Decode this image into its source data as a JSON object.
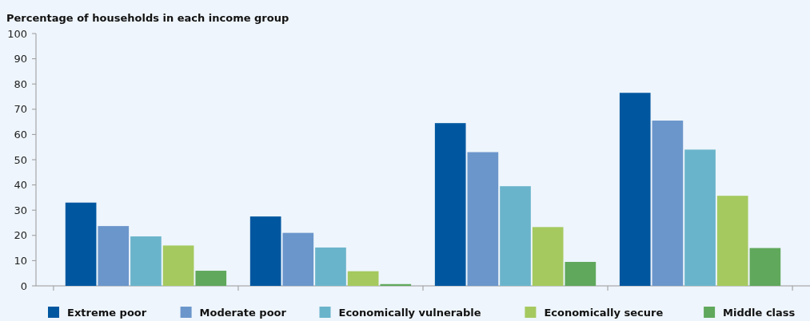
{
  "chart_data": {
    "type": "bar",
    "ylabel": "Percentage of households in each income group",
    "categories": [
      null,
      null,
      null,
      null
    ],
    "series": [
      {
        "name": "Extreme poor",
        "color": "#0057a0",
        "values": [
          33,
          27.5,
          64.5,
          76.5
        ]
      },
      {
        "name": "Moderate poor",
        "color": "#6b96cb",
        "values": [
          23.7,
          21,
          53,
          65.5
        ]
      },
      {
        "name": "Economically vulnerable",
        "color": "#6ab4cb",
        "values": [
          19.6,
          15.2,
          39.5,
          54
        ]
      },
      {
        "name": "Economically secure",
        "color": "#a5c95f",
        "values": [
          16,
          5.8,
          23.3,
          35.7
        ]
      },
      {
        "name": "Middle class",
        "color": "#60a85c",
        "values": [
          6,
          0.7,
          9.5,
          15
        ]
      }
    ],
    "ylim": [
      0,
      100
    ],
    "yticks": [
      0,
      10,
      20,
      30,
      40,
      50,
      60,
      70,
      80,
      90,
      100
    ],
    "legend": "bottom"
  }
}
